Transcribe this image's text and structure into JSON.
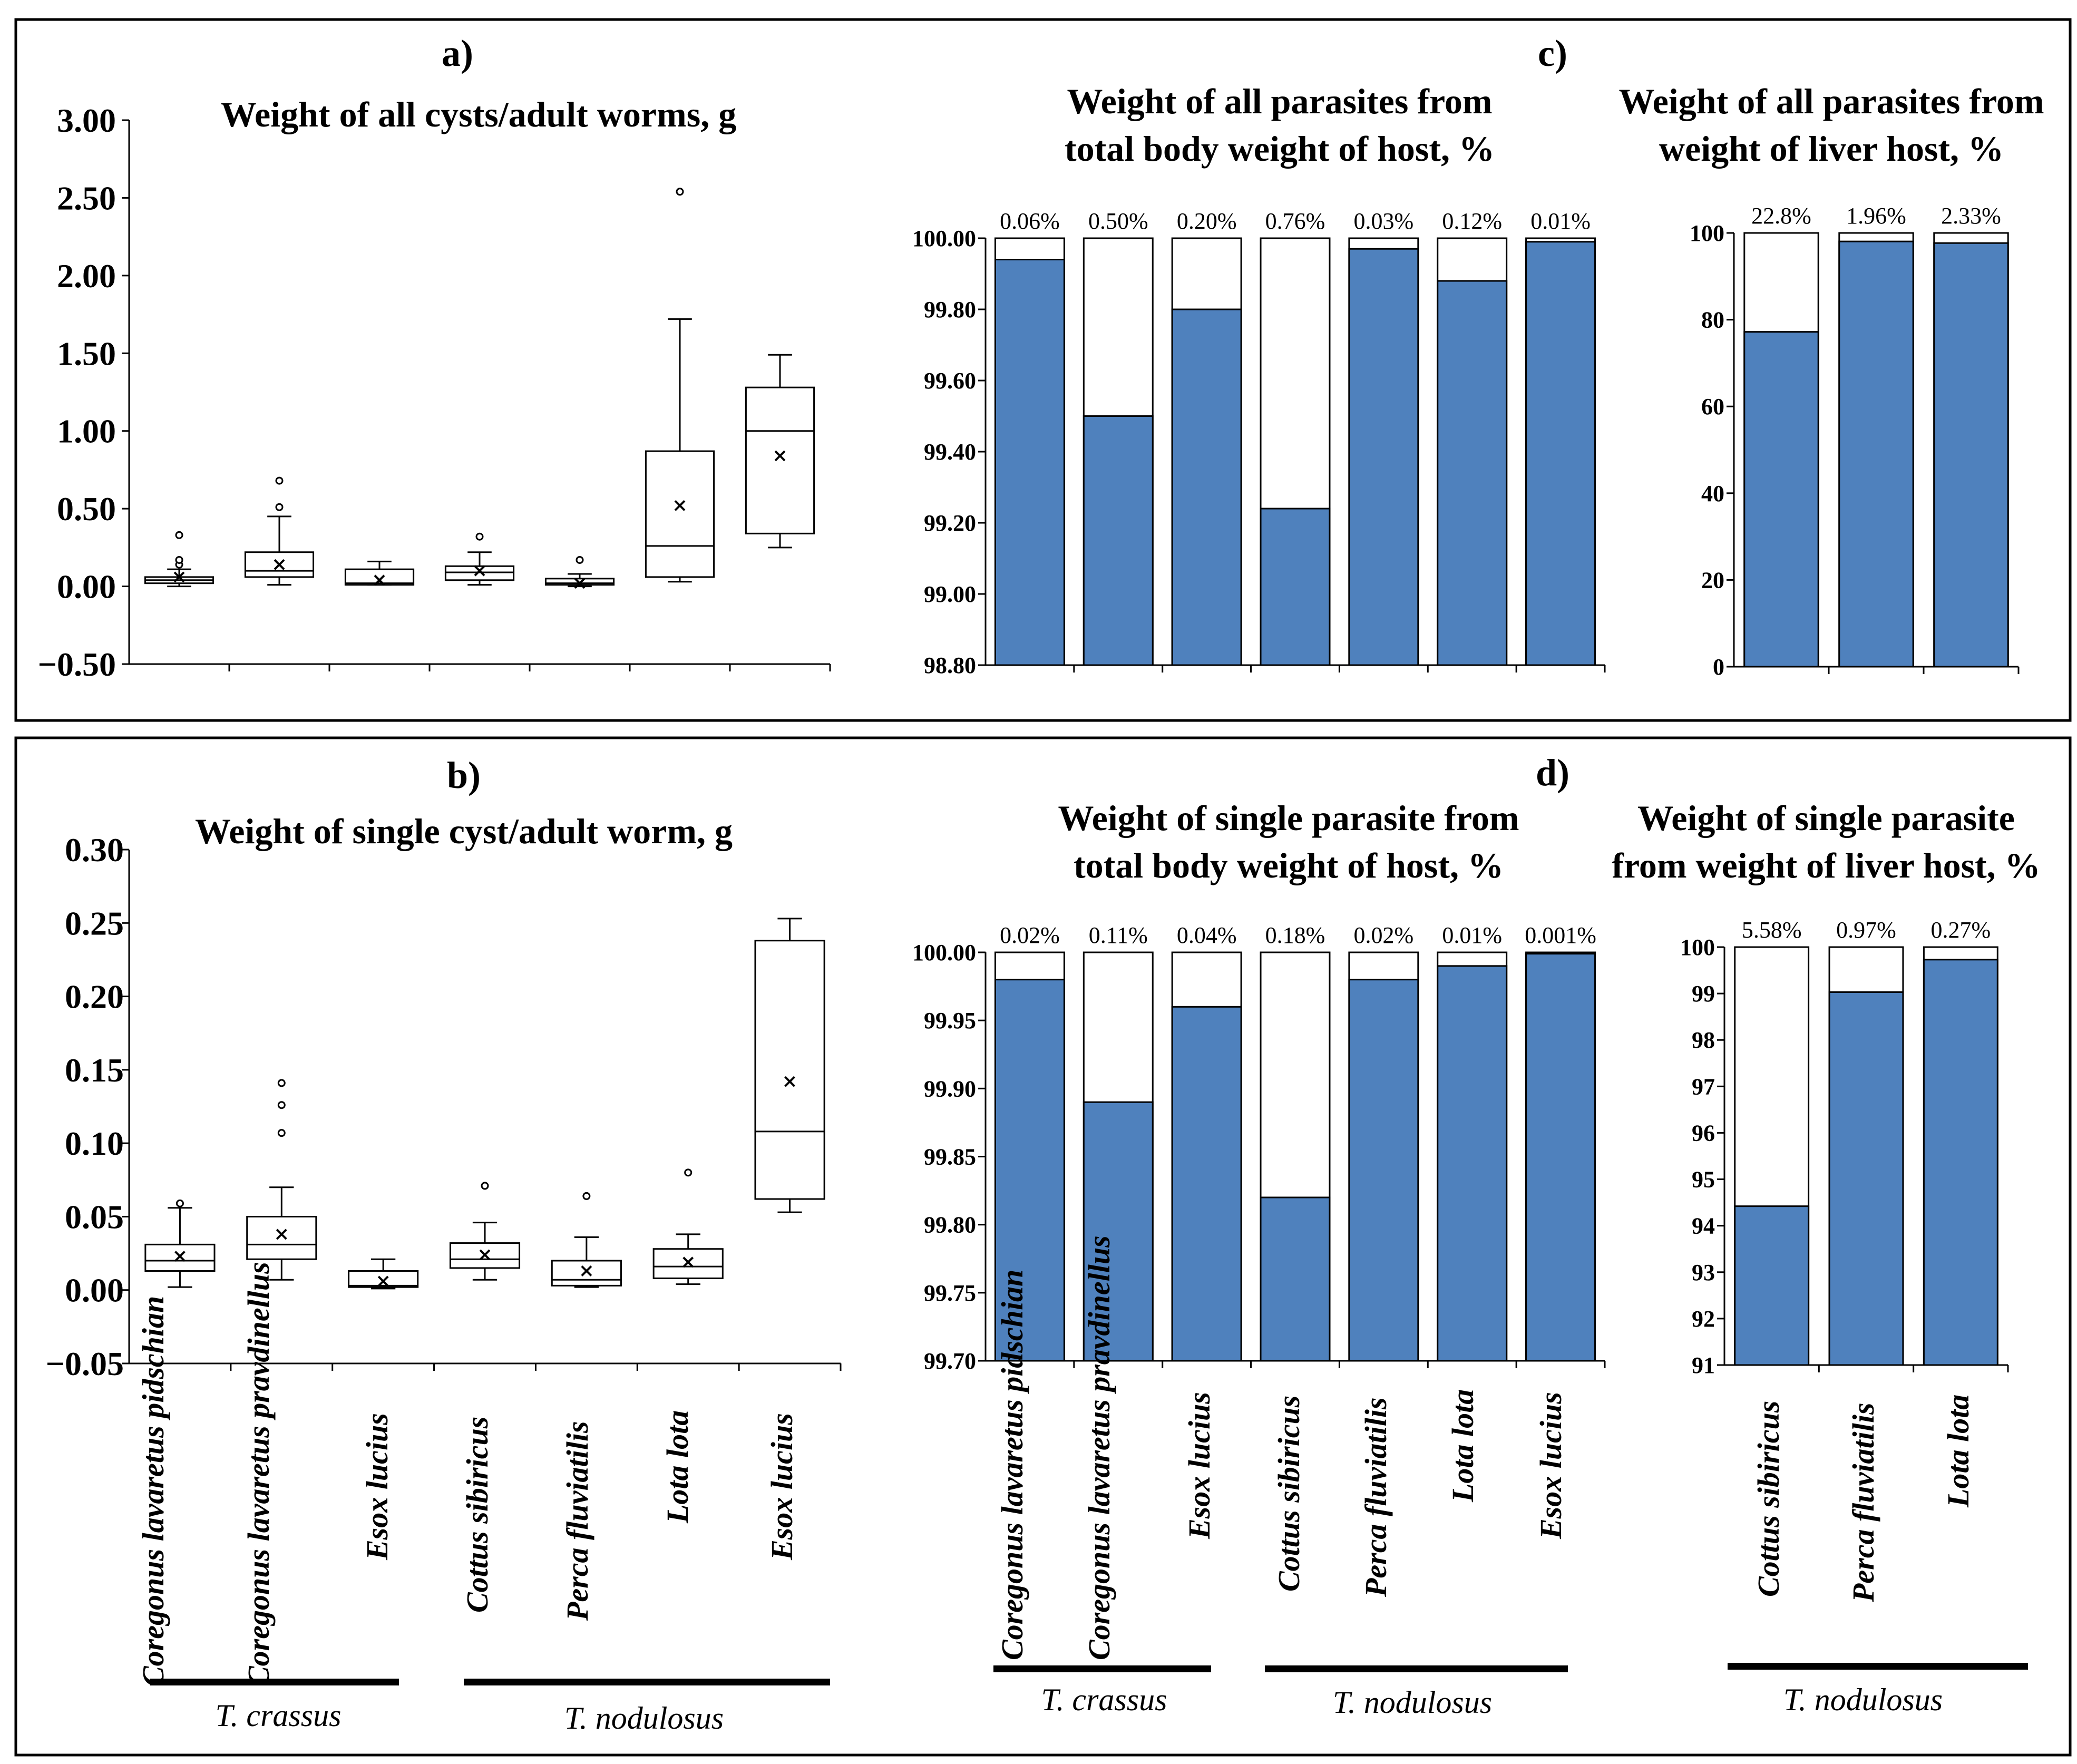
{
  "colors": {
    "bar_fill": "#4f81bd",
    "line": "#000000",
    "background": "#ffffff"
  },
  "group_labels": {
    "t_crassus": "T. crassus",
    "t_nodulosus": "T. nodulosus"
  },
  "categories": {
    "seven": [
      "Coregonus lavaretus pidschian",
      "Coregonus lavaretus pravdinellus",
      "Esox lucius",
      "Cottus sibiricus",
      "Perca fluviatilis",
      "Lota lota",
      "Esox lucius"
    ],
    "three": [
      "Cottus sibiricus",
      "Perca fluviatilis",
      "Lota lota"
    ]
  },
  "chart_data": [
    {
      "id": "a",
      "panel_label": "a)",
      "type": "box",
      "title": "Weight of all cysts/adult worms, g",
      "ylim": [
        -0.5,
        3.0
      ],
      "yticks": [
        "3.00",
        "2.50",
        "2.00",
        "1.50",
        "1.00",
        "0.50",
        "0.00",
        "−0.50"
      ],
      "ytick_values": [
        3.0,
        2.5,
        2.0,
        1.5,
        1.0,
        0.5,
        0.0,
        -0.5
      ],
      "categories": [
        "Coregonus lavaretus pidschian",
        "Coregonus lavaretus pravdinellus",
        "Esox lucius",
        "Cottus sibiricus",
        "Perca fluviatilis",
        "Lota lota",
        "Esox lucius"
      ],
      "boxes": [
        {
          "min": 0.0,
          "q1": 0.02,
          "median": 0.04,
          "q3": 0.06,
          "max": 0.11,
          "mean": 0.06,
          "outliers": [
            0.14,
            0.17,
            0.33
          ]
        },
        {
          "min": 0.01,
          "q1": 0.06,
          "median": 0.1,
          "q3": 0.22,
          "max": 0.45,
          "mean": 0.14,
          "outliers": [
            0.51,
            0.68
          ]
        },
        {
          "min": 0.01,
          "q1": 0.01,
          "median": 0.02,
          "q3": 0.11,
          "max": 0.16,
          "mean": 0.04,
          "outliers": []
        },
        {
          "min": 0.01,
          "q1": 0.04,
          "median": 0.09,
          "q3": 0.13,
          "max": 0.22,
          "mean": 0.1,
          "outliers": [
            0.32
          ]
        },
        {
          "min": 0.0,
          "q1": 0.01,
          "median": 0.02,
          "q3": 0.05,
          "max": 0.08,
          "mean": 0.02,
          "outliers": [
            0.17
          ]
        },
        {
          "min": 0.03,
          "q1": 0.06,
          "median": 0.26,
          "q3": 0.87,
          "max": 1.72,
          "mean": 0.52,
          "outliers": [
            2.54
          ]
        },
        {
          "min": 0.25,
          "q1": 0.34,
          "median": 1.0,
          "q3": 1.28,
          "max": 1.49,
          "mean": 0.84,
          "outliers": []
        }
      ]
    },
    {
      "id": "b",
      "panel_label": "b)",
      "type": "box",
      "title": "Weight of single cyst/adult worm, g",
      "ylim": [
        -0.05,
        0.3
      ],
      "yticks": [
        "0.30",
        "0.25",
        "0.20",
        "0.15",
        "0.10",
        "0.05",
        "0.00",
        "−0.05"
      ],
      "ytick_values": [
        0.3,
        0.25,
        0.2,
        0.15,
        0.1,
        0.05,
        0.0,
        -0.05
      ],
      "categories": [
        "Coregonus lavaretus pidschian",
        "Coregonus lavaretus pravdinellus",
        "Esox lucius",
        "Cottus sibiricus",
        "Perca fluviatilis",
        "Lota lota",
        "Esox lucius"
      ],
      "boxes": [
        {
          "min": 0.002,
          "q1": 0.013,
          "median": 0.02,
          "q3": 0.031,
          "max": 0.056,
          "mean": 0.023,
          "outliers": [
            0.059
          ]
        },
        {
          "min": 0.007,
          "q1": 0.021,
          "median": 0.031,
          "q3": 0.05,
          "max": 0.07,
          "mean": 0.038,
          "outliers": [
            0.107,
            0.126,
            0.141
          ]
        },
        {
          "min": 0.001,
          "q1": 0.002,
          "median": 0.003,
          "q3": 0.013,
          "max": 0.021,
          "mean": 0.006,
          "outliers": []
        },
        {
          "min": 0.007,
          "q1": 0.015,
          "median": 0.021,
          "q3": 0.032,
          "max": 0.046,
          "mean": 0.024,
          "outliers": [
            0.071
          ]
        },
        {
          "min": 0.002,
          "q1": 0.003,
          "median": 0.007,
          "q3": 0.02,
          "max": 0.036,
          "mean": 0.013,
          "outliers": [
            0.064
          ]
        },
        {
          "min": 0.004,
          "q1": 0.008,
          "median": 0.016,
          "q3": 0.028,
          "max": 0.038,
          "mean": 0.019,
          "outliers": [
            0.08
          ]
        },
        {
          "min": 0.053,
          "q1": 0.062,
          "median": 0.108,
          "q3": 0.238,
          "max": 0.253,
          "mean": 0.142,
          "outliers": []
        }
      ]
    },
    {
      "id": "c1",
      "panel_label": "c)",
      "type": "bar",
      "title_lines": [
        "Weight of all parasites from",
        "total body weight of host, %"
      ],
      "ylim": [
        98.8,
        100.0
      ],
      "yticks": [
        "100.00",
        "99.80",
        "99.60",
        "99.40",
        "99.20",
        "99.00",
        "98.80"
      ],
      "ytick_values": [
        100.0,
        99.8,
        99.6,
        99.4,
        99.2,
        99.0,
        98.8
      ],
      "categories": [
        "Coregonus lavaretus pidschian",
        "Coregonus lavaretus pravdinellus",
        "Esox lucius",
        "Cottus sibiricus",
        "Perca fluviatilis",
        "Lota lota",
        "Esox lucius"
      ],
      "values": [
        99.94,
        99.5,
        99.8,
        99.24,
        99.97,
        99.88,
        99.99
      ],
      "labels": [
        "0.06%",
        "0.50%",
        "0.20%",
        "0.76%",
        "0.03%",
        "0.12%",
        "0.01%"
      ]
    },
    {
      "id": "c2",
      "type": "bar",
      "title_lines": [
        "Weight of all parasites from",
        "weight of liver host, %"
      ],
      "ylim": [
        0,
        100
      ],
      "yticks": [
        "100",
        "80",
        "60",
        "40",
        "20",
        "0"
      ],
      "ytick_values": [
        100,
        80,
        60,
        40,
        20,
        0
      ],
      "categories": [
        "Cottus sibiricus",
        "Perca fluviatilis",
        "Lota lota"
      ],
      "values": [
        77.2,
        98.04,
        97.67
      ],
      "labels": [
        "22.8%",
        "1.96%",
        "2.33%"
      ]
    },
    {
      "id": "d1",
      "panel_label": "d)",
      "type": "bar",
      "title_lines": [
        "Weight of single parasite from",
        "total body weight of host, %"
      ],
      "ylim": [
        99.7,
        100.0
      ],
      "yticks": [
        "100.00",
        "99.95",
        "99.90",
        "99.85",
        "99.80",
        "99.75",
        "99.70"
      ],
      "ytick_values": [
        100.0,
        99.95,
        99.9,
        99.85,
        99.8,
        99.75,
        99.7
      ],
      "categories": [
        "Coregonus lavaretus pidschian",
        "Coregonus lavaretus pravdinellus",
        "Esox lucius",
        "Cottus sibiricus",
        "Perca fluviatilis",
        "Lota lota",
        "Esox lucius"
      ],
      "values": [
        99.98,
        99.89,
        99.96,
        99.82,
        99.98,
        99.99,
        99.999
      ],
      "labels": [
        "0.02%",
        "0.11%",
        "0.04%",
        "0.18%",
        "0.02%",
        "0.01%",
        "0.001%"
      ]
    },
    {
      "id": "d2",
      "type": "bar",
      "title_lines": [
        "Weight of single parasite",
        "from weight of liver host, %"
      ],
      "ylim": [
        91,
        100
      ],
      "yticks": [
        "100",
        "99",
        "98",
        "97",
        "96",
        "95",
        "94",
        "93",
        "92",
        "91"
      ],
      "ytick_values": [
        100,
        99,
        98,
        97,
        96,
        95,
        94,
        93,
        92,
        91
      ],
      "categories": [
        "Cottus sibiricus",
        "Perca fluviatilis",
        "Lota lota"
      ],
      "values": [
        94.42,
        99.03,
        99.73
      ],
      "labels": [
        "5.58%",
        "0.97%",
        "0.27%"
      ]
    }
  ]
}
